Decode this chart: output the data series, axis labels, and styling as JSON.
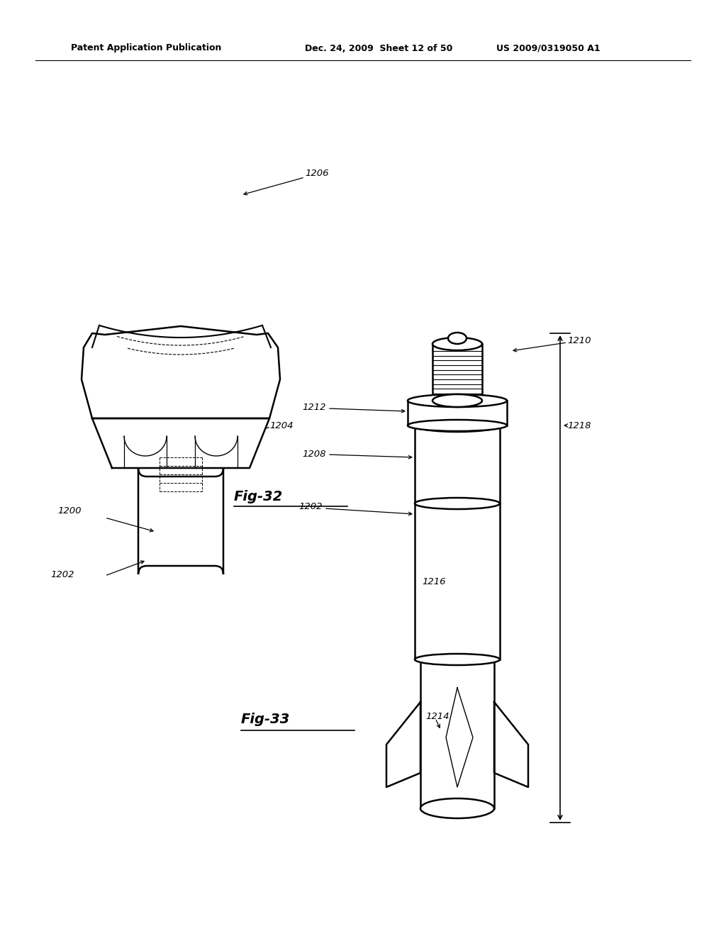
{
  "bg_color": "#ffffff",
  "header_text_left": "Patent Application Publication",
  "header_text_mid": "Dec. 24, 2009  Sheet 12 of 50",
  "header_text_right": "US 2009/0319050 A1",
  "fig32_label": "Fig-32",
  "fig33_label": "Fig-33",
  "black": "#000000"
}
